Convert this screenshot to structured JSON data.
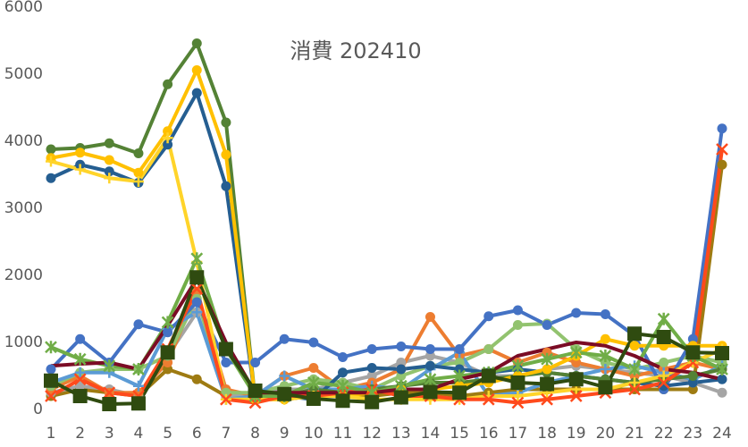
{
  "chart_data": {
    "type": "line",
    "title": "消費 202410",
    "categories": [
      "1",
      "2",
      "3",
      "4",
      "5",
      "6",
      "7",
      "8",
      "9",
      "10",
      "11",
      "12",
      "13",
      "14",
      "15",
      "16",
      "17",
      "18",
      "19",
      "20",
      "21",
      "22",
      "23",
      "24"
    ],
    "ylim": [
      0,
      6000
    ],
    "yticks": [
      0,
      1000,
      2000,
      3000,
      4000,
      5000,
      6000
    ],
    "grid": false,
    "series": [
      {
        "color": "#9e7b12",
        "marker": "circle",
        "values": [
          200,
          300,
          250,
          200,
          600,
          450,
          200,
          150,
          150,
          200,
          200,
          200,
          250,
          250,
          200,
          250,
          300,
          300,
          300,
          300,
          300,
          300,
          300,
          3650
        ]
      },
      {
        "color": "#a5a5a5",
        "marker": "circle",
        "values": [
          250,
          350,
          300,
          200,
          800,
          1450,
          200,
          200,
          300,
          300,
          400,
          500,
          700,
          800,
          700,
          500,
          500,
          600,
          650,
          600,
          550,
          500,
          400,
          250
        ]
      },
      {
        "color": "#ed7d31",
        "marker": "circle",
        "values": [
          300,
          500,
          250,
          250,
          700,
          1750,
          300,
          200,
          500,
          620,
          300,
          400,
          600,
          1380,
          800,
          900,
          700,
          850,
          700,
          600,
          500,
          600,
          700,
          600
        ]
      },
      {
        "color": "#92c36f",
        "marker": "circle",
        "values": [
          350,
          550,
          600,
          600,
          800,
          1650,
          250,
          250,
          350,
          450,
          400,
          300,
          500,
          650,
          700,
          900,
          1260,
          1280,
          900,
          700,
          600,
          700,
          800,
          700
        ]
      },
      {
        "color": "#5b9bd5",
        "marker": "plus",
        "values": [
          400,
          550,
          550,
          350,
          1200,
          1450,
          150,
          200,
          500,
          300,
          300,
          350,
          300,
          600,
          850,
          200,
          250,
          400,
          500,
          600,
          650,
          550,
          450,
          650
        ]
      },
      {
        "color": "#4472c4",
        "marker": "circle",
        "values": [
          600,
          1050,
          700,
          1270,
          1150,
          1600,
          700,
          700,
          1050,
          1000,
          780,
          900,
          940,
          900,
          900,
          1390,
          1480,
          1260,
          1440,
          1420,
          1100,
          300,
          1050,
          4190
        ]
      },
      {
        "color": "#255e91",
        "marker": "circle",
        "values": [
          3450,
          3650,
          3550,
          3380,
          3950,
          4720,
          3330,
          150,
          200,
          150,
          550,
          620,
          600,
          650,
          600,
          550,
          600,
          550,
          500,
          450,
          400,
          350,
          400,
          450
        ]
      },
      {
        "color": "#548235",
        "marker": "circle",
        "values": [
          3880,
          3900,
          3970,
          3820,
          4850,
          5460,
          4280,
          150,
          200,
          300,
          250,
          300,
          350,
          400,
          400,
          450,
          500,
          550,
          500,
          450,
          400,
          450,
          500,
          600
        ]
      },
      {
        "color": "#ffc000",
        "marker": "circle",
        "values": [
          3750,
          3830,
          3720,
          3530,
          4150,
          5060,
          3800,
          150,
          150,
          200,
          200,
          250,
          300,
          300,
          350,
          400,
          500,
          600,
          800,
          1050,
          950,
          950,
          950,
          950
        ]
      },
      {
        "color": "#ffd42a",
        "marker": "plus",
        "values": [
          3700,
          3580,
          3450,
          3400,
          4050,
          2200,
          150,
          150,
          150,
          200,
          200,
          150,
          150,
          150,
          150,
          200,
          200,
          250,
          300,
          300,
          400,
          500,
          700,
          900
        ]
      },
      {
        "color": "#ff4a1c",
        "marker": "x",
        "values": [
          200,
          450,
          250,
          200,
          900,
          1800,
          150,
          100,
          200,
          200,
          250,
          300,
          200,
          200,
          150,
          150,
          100,
          150,
          200,
          250,
          300,
          400,
          700,
          3880
        ]
      },
      {
        "color": "#70ad47",
        "marker": "star",
        "values": [
          930,
          750,
          650,
          600,
          1300,
          2250,
          900,
          200,
          200,
          400,
          350,
          250,
          350,
          450,
          500,
          550,
          650,
          750,
          850,
          800,
          600,
          1350,
          800,
          600
        ]
      },
      {
        "color": "#7b0c25",
        "marker": "none",
        "values": [
          650,
          680,
          700,
          600,
          1250,
          1950,
          1000,
          250,
          250,
          250,
          250,
          250,
          300,
          300,
          450,
          550,
          800,
          900,
          1000,
          950,
          800,
          600,
          550,
          450
        ]
      },
      {
        "color": "#2f4b10",
        "marker": "square",
        "values": [
          430,
          200,
          80,
          90,
          850,
          1970,
          900,
          280,
          230,
          160,
          130,
          110,
          180,
          260,
          250,
          500,
          400,
          380,
          450,
          330,
          1130,
          1080,
          850,
          840
        ]
      }
    ]
  }
}
